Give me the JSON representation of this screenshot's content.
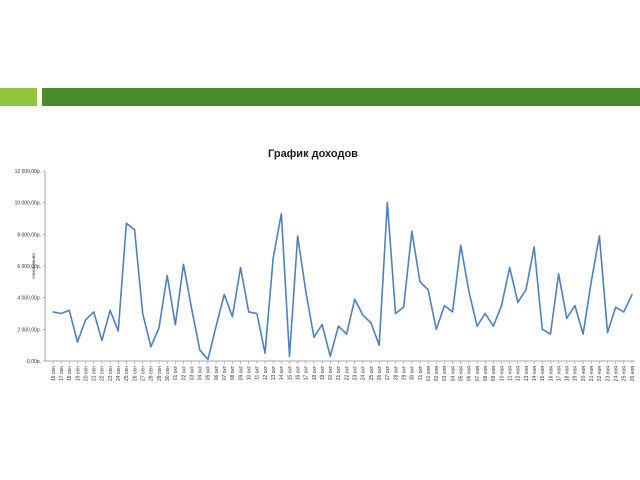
{
  "colors": {
    "band_light": "#90c43c",
    "band_dark": "#4a8c2a",
    "line": "#4f81bd",
    "axis": "#8c8c8c"
  },
  "chart_data": {
    "type": "line",
    "title": "График доходов",
    "ylabel": "Начисления",
    "xlabel": "",
    "ylim": [
      0,
      12000
    ],
    "yticks": [
      0,
      2000,
      4000,
      6000,
      8000,
      10000,
      12000
    ],
    "ytick_labels": [
      "0,00р.",
      "2 000,00р.",
      "4 000,00р.",
      "6 000,00р.",
      "8 000,00р.",
      "10 000,00р.",
      "12 000,00р."
    ],
    "grid": false,
    "legend": "none",
    "categories": [
      "16 сен",
      "17 сен",
      "18 сен",
      "19 сен",
      "20 сен",
      "21 сен",
      "22 сен",
      "23 сен",
      "24 сен",
      "25 сен",
      "26 сен",
      "27 сен",
      "28 сен",
      "29 сен",
      "30 сен",
      "01 окт",
      "02 окт",
      "03 окт",
      "04 окт",
      "05 окт",
      "06 окт",
      "07 окт",
      "08 окт",
      "09 окт",
      "10 окт",
      "11 окт",
      "12 окт",
      "13 окт",
      "14 окт",
      "15 окт",
      "16 окт",
      "17 окт",
      "18 окт",
      "19 окт",
      "20 окт",
      "21 окт",
      "22 окт",
      "23 окт",
      "24 окт",
      "25 окт",
      "26 окт",
      "27 окт",
      "28 окт",
      "29 окт",
      "30 окт",
      "31 окт",
      "01 ноя",
      "02 ноя",
      "03 ноя",
      "04 ноя",
      "05 ноя",
      "06 ноя",
      "07 ноя",
      "08 ноя",
      "09 ноя",
      "10 ноя",
      "11 ноя",
      "12 ноя",
      "13 ноя",
      "14 ноя",
      "15 ноя",
      "16 ноя",
      "17 ноя",
      "18 ноя",
      "19 ноя",
      "20 ноя",
      "21 ноя",
      "22 ноя",
      "23 ноя",
      "24 ноя",
      "25 ноя",
      "26 ноя"
    ],
    "values": [
      3100,
      3000,
      3200,
      1200,
      2600,
      3100,
      1300,
      3200,
      1900,
      8700,
      8300,
      3000,
      900,
      2100,
      5400,
      2300,
      6100,
      3300,
      700,
      100,
      2200,
      4200,
      2800,
      5900,
      3100,
      3000,
      500,
      6500,
      9300,
      300,
      7900,
      4400,
      1500,
      2300,
      300,
      2200,
      1700,
      3900,
      2900,
      2400,
      1000,
      10000,
      3000,
      3400,
      8200,
      5000,
      4500,
      2000,
      3500,
      3100,
      7300,
      4400,
      2200,
      3000,
      2200,
      3500,
      5900,
      3700,
      4500,
      7200,
      2000,
      1700,
      5500,
      2700,
      3500,
      1700,
      5000,
      7900,
      1800,
      3400,
      3100,
      4200
    ]
  }
}
